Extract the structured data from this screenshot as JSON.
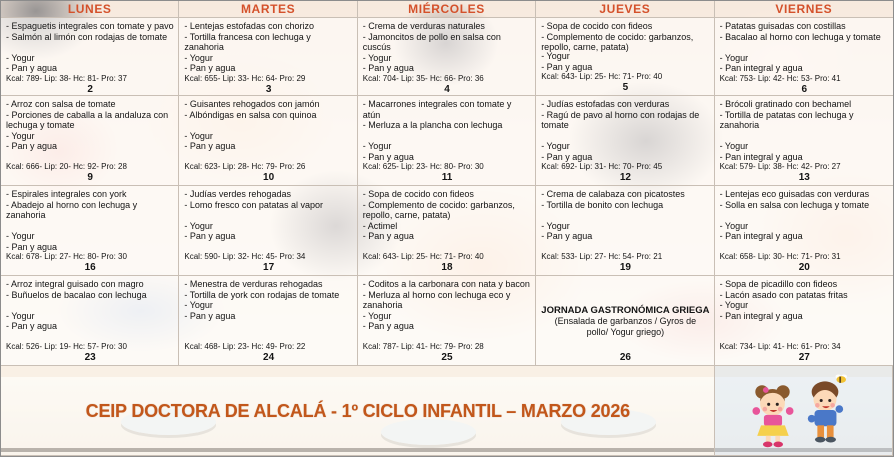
{
  "header": {
    "days": [
      "LUNES",
      "MARTES",
      "MIÉRCOLES",
      "JUEVES",
      "VIERNES"
    ]
  },
  "weeks": [
    {
      "cells": [
        {
          "day": "2",
          "lines": [
            "- Espaguetis integrales con tomate y pavo",
            "- Salmón al limón con rodajas de tomate",
            "",
            "- Yogur",
            "- Pan y agua"
          ],
          "kcal": "Kcal: 789- Lip: 38- Hc: 81- Pro: 37"
        },
        {
          "day": "3",
          "lines": [
            "- Lentejas estofadas con chorizo",
            "- Tortilla francesa con lechuga y zanahoria",
            "",
            "- Yogur",
            "- Pan y agua"
          ],
          "kcal": "Kcal: 655- Lip: 33- Hc: 64- Pro: 29"
        },
        {
          "day": "4",
          "lines": [
            "- Crema de verduras naturales",
            "- Jamoncitos de pollo en salsa con cuscús",
            "",
            "- Yogur",
            "- Pan y agua"
          ],
          "kcal": "Kcal: 704- Lip: 35- Hc: 66- Pro: 36"
        },
        {
          "day": "5",
          "lines": [
            "- Sopa de cocido con fideos",
            "- Complemento de cocido: garbanzos, repollo, carne, patata)",
            "- Yogur",
            "- Pan y agua"
          ],
          "kcal": "Kcal: 643- Lip: 25- Hc: 71- Pro: 40"
        },
        {
          "day": "6",
          "lines": [
            "- Patatas guisadas con costillas",
            "- Bacalao al horno con lechuga y tomate",
            "",
            "- Yogur",
            "- Pan integral y agua"
          ],
          "kcal": "Kcal: 753- Lip: 42- Hc: 53- Pro: 41"
        }
      ]
    },
    {
      "cells": [
        {
          "day": "9",
          "lines": [
            "- Arroz con salsa de tomate",
            "- Porciones de caballa a la andaluza con lechuga y tomate",
            "- Yogur",
            "- Pan y agua"
          ],
          "kcal": "Kcal: 666- Lip: 20- Hc: 92- Pro: 28"
        },
        {
          "day": "10",
          "lines": [
            "- Guisantes rehogados con jamón",
            "- Albóndigas en salsa con quinoa",
            "",
            "- Yogur",
            "- Pan y agua"
          ],
          "kcal": "Kcal: 623- Lip: 28- Hc: 79- Pro: 26"
        },
        {
          "day": "11",
          "lines": [
            "- Macarrones integrales con tomate y atún",
            "- Merluza a la plancha con lechuga",
            "",
            "- Yogur",
            "- Pan y agua"
          ],
          "kcal": "Kcal: 625- Lip: 23- Hc: 80- Pro: 30"
        },
        {
          "day": "12",
          "lines": [
            "- Judías estofadas con verduras",
            "- Ragú de pavo al horno con rodajas de tomate",
            "",
            "- Yogur",
            "- Pan y agua"
          ],
          "kcal": "Kcal: 692- Lip: 31- Hc: 70- Pro: 45"
        },
        {
          "day": "13",
          "lines": [
            "- Brócoli gratinado con bechamel",
            "- Tortilla de patatas con lechuga y zanahoria",
            "",
            "- Yogur",
            "- Pan integral y agua"
          ],
          "kcal": "Kcal: 579- Lip: 38- Hc: 42- Pro: 27"
        }
      ]
    },
    {
      "cells": [
        {
          "day": "16",
          "lines": [
            "- Espirales integrales con york",
            "- Abadejo al horno con lechuga y zanahoria",
            "",
            "- Yogur",
            "- Pan y agua"
          ],
          "kcal": "Kcal: 678- Lip: 27- Hc: 80- Pro: 30"
        },
        {
          "day": "17",
          "lines": [
            "- Judías verdes rehogadas",
            "- Lomo fresco con patatas al vapor",
            "",
            "- Yogur",
            "- Pan y agua"
          ],
          "kcal": "Kcal: 590- Lip: 32- Hc: 45- Pro: 34"
        },
        {
          "day": "18",
          "lines": [
            "- Sopa de cocido con fideos",
            "- Complemento de cocido: garbanzos, repollo, carne, patata)",
            "- Actimel",
            "- Pan y agua"
          ],
          "kcal": "Kcal: 643- Lip: 25- Hc: 71- Pro: 40"
        },
        {
          "day": "19",
          "lines": [
            "- Crema de calabaza con picatostes",
            "- Tortilla de bonito con lechuga",
            "",
            "- Yogur",
            "- Pan y agua"
          ],
          "kcal": "Kcal: 533- Lip: 27- Hc: 54- Pro: 21"
        },
        {
          "day": "20",
          "lines": [
            "- Lentejas eco guisadas con verduras",
            "- Solla en salsa con lechuga y tomate",
            "",
            "- Yogur",
            "- Pan integral y agua"
          ],
          "kcal": "Kcal: 658- Lip: 30- Hc: 71- Pro: 31"
        }
      ]
    },
    {
      "cells": [
        {
          "day": "23",
          "lines": [
            "- Arroz integral guisado con magro",
            "- Buñuelos de bacalao con lechuga",
            "",
            "- Yogur",
            "- Pan y agua"
          ],
          "kcal": "Kcal: 526- Lip: 19- Hc: 57- Pro: 30"
        },
        {
          "day": "24",
          "lines": [
            "- Menestra de verduras rehogadas",
            "- Tortilla de york con rodajas de tomate",
            "- Yogur",
            "- Pan y agua"
          ],
          "kcal": "Kcal: 468- Lip: 23- Hc: 49- Pro: 22"
        },
        {
          "day": "25",
          "lines": [
            "- Coditos a la carbonara con nata y bacon",
            "- Merluza al horno con lechuga eco y zanahoria",
            "- Yogur",
            "- Pan y agua"
          ],
          "kcal": "Kcal: 787- Lip: 41- Hc: 79- Pro: 28"
        },
        {
          "day": "26",
          "special": true,
          "title": "JORNADA GASTRONÓMICA GRIEGA",
          "subtitle": "(Ensalada de garbanzos / Gyros de pollo/ Yogur griego)"
        },
        {
          "day": "27",
          "lines": [
            "- Sopa de picadillo con fideos",
            "- Lacón asado con patatas fritas",
            "- Yogur",
            "- Pan integral y agua"
          ],
          "kcal": "Kcal: 734- Lip: 41- Hc: 61- Pro: 34"
        }
      ]
    }
  ],
  "footer": {
    "title": "CEIP DOCTORA DE ALCALÁ - 1º CICLO INFANTIL – MARZO 2026",
    "illustration": "two-children-cartoon"
  },
  "colors": {
    "header_text": "#d4512b",
    "footer_title_text": "#c2571b",
    "cell_text": "#141414"
  }
}
